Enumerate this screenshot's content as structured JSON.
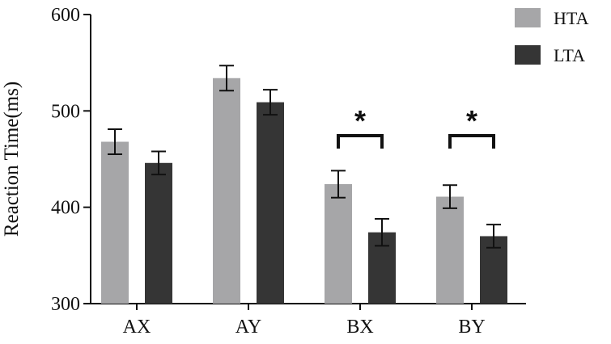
{
  "chart_data": {
    "type": "bar",
    "title": "",
    "xlabel": "",
    "ylabel": "Reaction Time(ms)",
    "ylim": [
      300,
      600
    ],
    "yticks": [
      300,
      400,
      500,
      600
    ],
    "categories": [
      "AX",
      "AY",
      "BX",
      "BY"
    ],
    "series": [
      {
        "name": "HTA",
        "color": "#a6a6a8",
        "values": [
          468,
          534,
          424,
          411
        ],
        "errors": [
          13,
          13,
          14,
          12
        ]
      },
      {
        "name": "LTA",
        "color": "#353535",
        "values": [
          446,
          509,
          374,
          370
        ],
        "errors": [
          12,
          13,
          14,
          12
        ]
      }
    ],
    "annotations": [
      {
        "category": "BX",
        "text": "*",
        "bracket": "HTA-LTA"
      },
      {
        "category": "BY",
        "text": "*",
        "bracket": "HTA-LTA"
      }
    ],
    "legend": "top-right",
    "grid": false
  }
}
